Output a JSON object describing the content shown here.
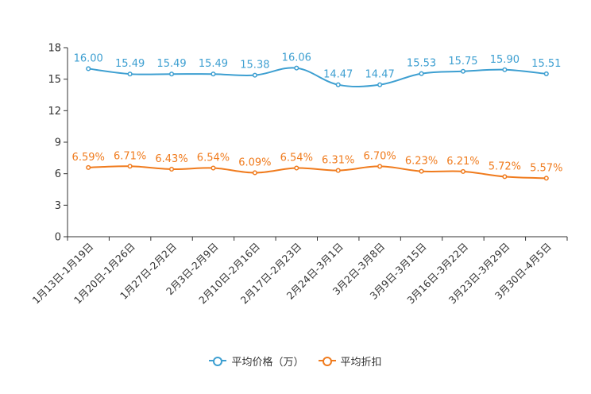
{
  "chart_data": {
    "type": "line",
    "categories": [
      "1月13日-1月19日",
      "1月20日-1月26日",
      "1月27日-2月2日",
      "2月3日-2月9日",
      "2月10日-2月16日",
      "2月17日-2月23日",
      "2月24日-3月1日",
      "3月2日-3月8日",
      "3月9日-3月15日",
      "3月16日-3月22日",
      "3月23日-3月29日",
      "3月30日-4月5日"
    ],
    "series": [
      {
        "name": "平均价格（万）",
        "color": "#3d9fd1",
        "values": [
          16.0,
          15.49,
          15.49,
          15.49,
          15.38,
          16.06,
          14.47,
          14.47,
          15.53,
          15.75,
          15.9,
          15.51
        ],
        "labels": [
          "16.00",
          "15.49",
          "15.49",
          "15.49",
          "15.38",
          "16.06",
          "14.47",
          "14.47",
          "15.53",
          "15.75",
          "15.90",
          "15.51"
        ]
      },
      {
        "name": "平均折扣",
        "color": "#f07b1d",
        "values": [
          6.59,
          6.71,
          6.43,
          6.54,
          6.09,
          6.54,
          6.31,
          6.7,
          6.23,
          6.21,
          5.72,
          5.57
        ],
        "labels": [
          "6.59%",
          "6.71%",
          "6.43%",
          "6.54%",
          "6.09%",
          "6.54%",
          "6.31%",
          "6.70%",
          "6.23%",
          "6.21%",
          "5.72%",
          "5.57%"
        ]
      }
    ],
    "yticks": [
      "0",
      "3",
      "6",
      "9",
      "12",
      "15",
      "18"
    ],
    "ylim": [
      0,
      18
    ],
    "title": "",
    "xlabel": "",
    "ylabel": "",
    "legend_position": "bottom-center",
    "grid": false
  }
}
